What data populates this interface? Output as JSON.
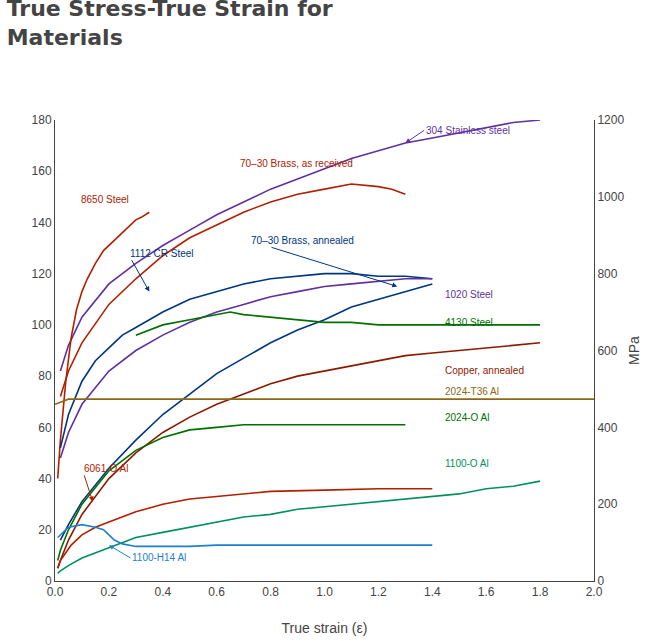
{
  "chart_data": {
    "type": "line",
    "title": "True Stress-True Strain for\nMaterials",
    "xlabel": "True strain (ε)",
    "y2label": "MPa",
    "xlim": [
      0,
      2.0
    ],
    "ylim": [
      0,
      180
    ],
    "y2lim": [
      0,
      1200
    ],
    "xticks": [
      {
        "value": 0,
        "label": "0.0"
      },
      0.2,
      0.4,
      0.6,
      0.8,
      {
        "value": 1.0,
        "label": "1.0"
      },
      1.2,
      1.4,
      1.6,
      1.8,
      {
        "value": 2.0,
        "label": "2.0"
      }
    ],
    "yticks": [
      0,
      20,
      40,
      60,
      80,
      100,
      120,
      140,
      160,
      180
    ],
    "y2ticks": [
      0,
      200,
      400,
      600,
      800,
      1000,
      1200
    ],
    "grid": false,
    "series": [
      {
        "name": "304 Stainless steel",
        "color": "#6030a0",
        "x": [
          0.02,
          0.05,
          0.1,
          0.2,
          0.3,
          0.4,
          0.5,
          0.6,
          0.7,
          0.8,
          0.9,
          1.0,
          1.1,
          1.2,
          1.3,
          1.4,
          1.5,
          1.6,
          1.7,
          1.8
        ],
        "values": [
          82,
          92,
          103,
          116,
          124,
          131,
          137,
          143,
          148,
          153,
          157,
          161,
          165,
          168,
          171,
          173,
          175,
          177,
          179,
          180
        ]
      },
      {
        "name": "70–30 Brass, as received",
        "color": "#b02000",
        "x": [
          0.02,
          0.05,
          0.1,
          0.2,
          0.3,
          0.4,
          0.5,
          0.6,
          0.7,
          0.8,
          0.9,
          1.0,
          1.1,
          1.2,
          1.25,
          1.3
        ],
        "values": [
          72,
          82,
          93,
          108,
          118,
          127,
          134,
          139,
          144,
          148,
          151,
          153,
          155,
          154,
          153,
          151
        ]
      },
      {
        "name": "8650 Steel",
        "color": "#b02000",
        "x": [
          0.01,
          0.02,
          0.04,
          0.06,
          0.08,
          0.1,
          0.12,
          0.15,
          0.18,
          0.2,
          0.22,
          0.25,
          0.28,
          0.3,
          0.32,
          0.35
        ],
        "values": [
          40,
          55,
          78,
          95,
          106,
          113,
          118,
          124,
          129,
          131,
          133,
          136,
          139,
          141,
          142,
          144
        ]
      },
      {
        "name": "1112 CR Steel",
        "color": "#003580",
        "x": [
          0.02,
          0.05,
          0.1,
          0.15,
          0.2,
          0.25,
          0.3,
          0.35,
          0.4,
          0.5,
          0.6,
          0.7,
          0.8,
          0.9,
          1.0,
          1.1,
          1.2,
          1.3,
          1.4
        ],
        "values": [
          52,
          65,
          78,
          86,
          91,
          96,
          99,
          102,
          105,
          110,
          113,
          116,
          118,
          119,
          120,
          120,
          119,
          119,
          118
        ]
      },
      {
        "name": "70–30 Brass, annealed",
        "color": "#003580",
        "x": [
          0.02,
          0.05,
          0.1,
          0.2,
          0.3,
          0.4,
          0.5,
          0.6,
          0.7,
          0.8,
          0.9,
          1.0,
          1.1,
          1.2,
          1.3,
          1.4
        ],
        "values": [
          16,
          22,
          31,
          44,
          55,
          65,
          73,
          81,
          87,
          93,
          98,
          102,
          107,
          110,
          113,
          116
        ]
      },
      {
        "name": "1020 Steel",
        "color": "#6030a0",
        "x": [
          0.02,
          0.05,
          0.1,
          0.2,
          0.3,
          0.4,
          0.5,
          0.6,
          0.7,
          0.8,
          0.9,
          1.0,
          1.1,
          1.2,
          1.3,
          1.4
        ],
        "values": [
          48,
          58,
          69,
          82,
          90,
          96,
          101,
          105,
          108,
          111,
          113,
          115,
          116,
          117,
          118,
          118
        ]
      },
      {
        "name": "4130 Steel",
        "color": "#007000",
        "x": [
          0.3,
          0.4,
          0.5,
          0.6,
          0.65,
          0.7,
          0.8,
          0.9,
          1.0,
          1.1,
          1.2,
          1.3,
          1.4,
          1.5,
          1.6,
          1.7,
          1.8
        ],
        "values": [
          96,
          100,
          102,
          104,
          105,
          104,
          103,
          102,
          101,
          101,
          100,
          100,
          100,
          100,
          100,
          100,
          100
        ]
      },
      {
        "name": "Copper, annealed",
        "color": "#8b1a00",
        "x": [
          0.01,
          0.02,
          0.05,
          0.1,
          0.2,
          0.3,
          0.4,
          0.5,
          0.6,
          0.7,
          0.8,
          0.9,
          1.0,
          1.1,
          1.2,
          1.3,
          1.4,
          1.5,
          1.6,
          1.7,
          1.8
        ],
        "values": [
          5,
          8,
          16,
          26,
          40,
          50,
          58,
          64,
          69,
          73,
          77,
          80,
          82,
          84,
          86,
          88,
          89,
          90,
          91,
          92,
          93
        ]
      },
      {
        "name": "2024-T36 Al",
        "color": "#8b6914",
        "x": [
          0.0,
          0.05,
          0.1,
          0.15,
          0.2,
          2.0
        ],
        "values": [
          69,
          71,
          71,
          71,
          71,
          71
        ]
      },
      {
        "name": "2024-O Al",
        "color": "#007000",
        "x": [
          0.01,
          0.02,
          0.05,
          0.1,
          0.2,
          0.3,
          0.4,
          0.5,
          0.6,
          0.7,
          0.8,
          1.0,
          1.2,
          1.3
        ],
        "values": [
          8,
          12,
          20,
          30,
          43,
          51,
          56,
          59,
          60,
          61,
          61,
          61,
          61,
          61
        ]
      },
      {
        "name": "6061-O Al",
        "color": "#b02000",
        "x": [
          0.01,
          0.02,
          0.04,
          0.06,
          0.1,
          0.15,
          0.2,
          0.25,
          0.3,
          0.4,
          0.5,
          0.6,
          0.8,
          1.0,
          1.2,
          1.4
        ],
        "values": [
          5,
          8,
          11,
          14,
          18,
          21,
          23,
          25,
          27,
          30,
          32,
          33,
          35,
          35.5,
          36,
          36
        ]
      },
      {
        "name": "1100-O Al",
        "color": "#009060",
        "x": [
          0.01,
          0.02,
          0.05,
          0.1,
          0.2,
          0.3,
          0.4,
          0.5,
          0.6,
          0.7,
          0.8,
          0.9,
          1.0,
          1.1,
          1.2,
          1.3,
          1.4,
          1.5,
          1.6,
          1.7,
          1.8
        ],
        "values": [
          3,
          4,
          6,
          9,
          13,
          17,
          19,
          21,
          23,
          25,
          26,
          28,
          29,
          30,
          31,
          32,
          33,
          34,
          36,
          37,
          39
        ]
      },
      {
        "name": "1100-H14 Al",
        "color": "#1e7fd0",
        "x": [
          0.01,
          0.05,
          0.1,
          0.15,
          0.18,
          0.2,
          0.22,
          0.25,
          0.3,
          0.4,
          0.5,
          0.6,
          0.8,
          1.0,
          1.2,
          1.4
        ],
        "values": [
          17,
          21,
          22,
          21,
          20,
          18,
          16,
          14.5,
          13.5,
          13.5,
          13.5,
          14,
          14,
          14,
          14,
          14
        ]
      }
    ],
    "annotations": [
      {
        "text": "304 Stainless steel",
        "x": 1.37,
        "y": 176,
        "color": "#6030a0",
        "arrow_x": 1.3,
        "arrow_y": 171
      },
      {
        "text": "70–30 Brass, as received",
        "x": 0.68,
        "y": 163,
        "color": "#b02000"
      },
      {
        "text": "8650 Steel",
        "x": 0.09,
        "y": 149,
        "color": "#b02000"
      },
      {
        "text": "1112 CR Steel",
        "x": 0.27,
        "y": 128,
        "color": "#003580",
        "arrow_x": 0.35,
        "arrow_y": 113
      },
      {
        "text": "70–30 Brass, annealed",
        "x": 0.72,
        "y": 133,
        "color": "#003580",
        "arrow_x": 1.27,
        "arrow_y": 115
      },
      {
        "text": "1020 Steel",
        "x": 1.44,
        "y": 112,
        "color": "#6030a0"
      },
      {
        "text": "4130 Steel",
        "x": 1.44,
        "y": 101,
        "color": "#007000"
      },
      {
        "text": "Copper, annealed",
        "x": 1.44,
        "y": 82,
        "color": "#8b1a00"
      },
      {
        "text": "2024-T36 Al",
        "x": 1.44,
        "y": 74,
        "color": "#8b6914"
      },
      {
        "text": "2024-O Al",
        "x": 1.44,
        "y": 64,
        "color": "#007000"
      },
      {
        "text": "1100-O Al",
        "x": 1.44,
        "y": 46,
        "color": "#009060"
      },
      {
        "text": "6061-O Al",
        "x": 0.1,
        "y": 44,
        "color": "#b02000",
        "arrow_x": 0.14,
        "arrow_y": 31
      },
      {
        "text": "1100-H14 Al",
        "x": 0.28,
        "y": 9,
        "color": "#1e7fd0",
        "arrow_x": 0.2,
        "arrow_y": 14
      }
    ]
  }
}
